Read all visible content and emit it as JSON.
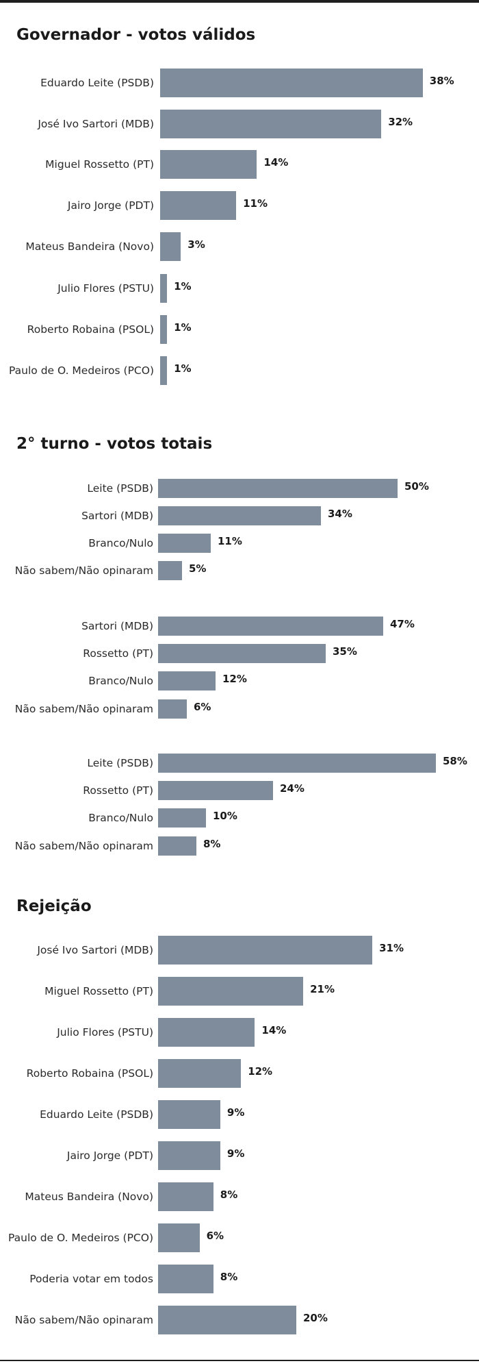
{
  "colors": {
    "bar": "#7e8c9c",
    "text": "#1a1a1a",
    "rule": "#1f1f1f"
  },
  "chart_data": [
    {
      "type": "bar",
      "orientation": "horizontal",
      "title": "Governador - votos válidos",
      "categories": [
        "Eduardo Leite (PSDB)",
        "José Ivo Sartori (MDB)",
        "Miguel Rossetto (PT)",
        "Jairo Jorge (PDT)",
        "Mateus Bandeira (Novo)",
        "Julio Flores (PSTU)",
        "Roberto Robaina (PSOL)",
        "Paulo de O. Medeiros (PCO)"
      ],
      "values": [
        38,
        32,
        14,
        11,
        3,
        1,
        1,
        1
      ],
      "value_labels": [
        "38%",
        "32%",
        "14%",
        "11%",
        "3%",
        "1%",
        "1%",
        "1%"
      ],
      "unit": "%"
    },
    {
      "type": "bar",
      "orientation": "horizontal",
      "title": "2° turno - votos totais",
      "categories": [
        "Leite (PSDB)",
        "Sartori (MDB)",
        "Branco/Nulo",
        "Não sabem/Não opinaram"
      ],
      "values": [
        50,
        34,
        11,
        5
      ],
      "value_labels": [
        "50%",
        "34%",
        "11%",
        "5%"
      ],
      "unit": "%"
    },
    {
      "type": "bar",
      "orientation": "horizontal",
      "title": "",
      "categories": [
        "Sartori (MDB)",
        "Rossetto (PT)",
        "Branco/Nulo",
        "Não sabem/Não opinaram"
      ],
      "values": [
        47,
        35,
        12,
        6
      ],
      "value_labels": [
        "47%",
        "35%",
        "12%",
        "6%"
      ],
      "unit": "%"
    },
    {
      "type": "bar",
      "orientation": "horizontal",
      "title": "",
      "categories": [
        "Leite (PSDB)",
        "Rossetto (PT)",
        "Branco/Nulo",
        "Não sabem/Não opinaram"
      ],
      "values": [
        58,
        24,
        10,
        8
      ],
      "value_labels": [
        "58%",
        "24%",
        "10%",
        "8%"
      ],
      "unit": "%"
    },
    {
      "type": "bar",
      "orientation": "horizontal",
      "title": "Rejeição",
      "categories": [
        "José Ivo Sartori (MDB)",
        "Miguel Rossetto (PT)",
        "Julio Flores (PSTU)",
        "Roberto Robaina (PSOL)",
        "Eduardo Leite (PSDB)",
        "Jairo Jorge (PDT)",
        "Mateus Bandeira (Novo)",
        "Paulo de O. Medeiros (PCO)",
        "Poderia votar em todos",
        "Não sabem/Não opinaram"
      ],
      "values": [
        31,
        21,
        14,
        12,
        9,
        9,
        8,
        6,
        8,
        20
      ],
      "value_labels": [
        "31%",
        "21%",
        "14%",
        "12%",
        "9%",
        "9%",
        "8%",
        "6%",
        "8%",
        "20%"
      ],
      "unit": "%"
    }
  ]
}
